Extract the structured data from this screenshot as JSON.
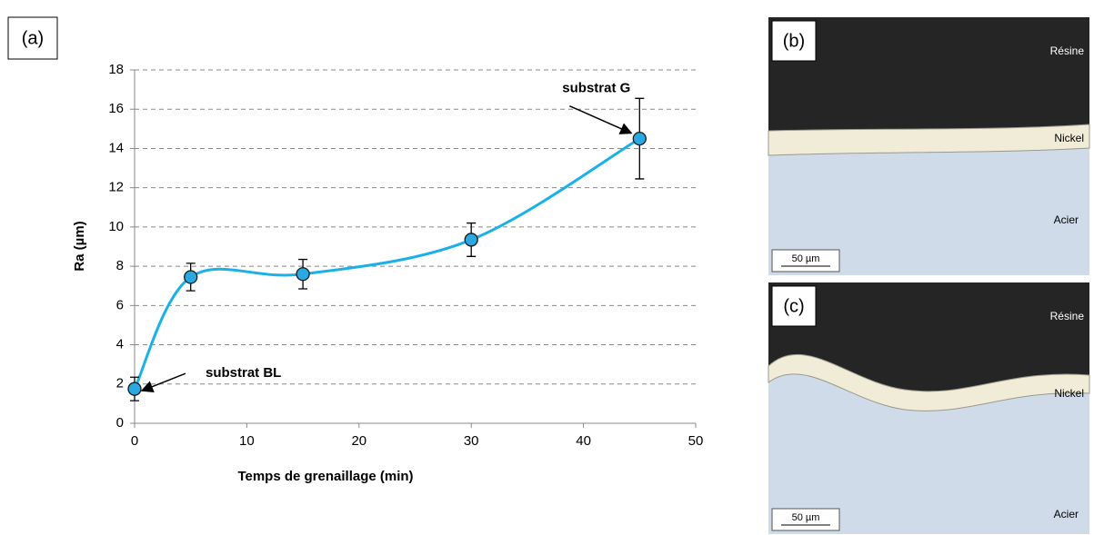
{
  "chart_data": {
    "type": "line",
    "label": "(a)",
    "xlabel": "Temps de grenaillage (min)",
    "ylabel": "Ra (µm)",
    "x": [
      0,
      5,
      15,
      30,
      45
    ],
    "series": [
      {
        "color": "#1ab0e8",
        "values": [
          1.75,
          7.45,
          7.6,
          9.35,
          14.5
        ],
        "errors": [
          0.6,
          0.7,
          0.75,
          0.85,
          2.05
        ]
      }
    ],
    "xlim": [
      0,
      50
    ],
    "xticks": [
      0,
      10,
      20,
      30,
      40,
      50
    ],
    "ylim": [
      0,
      18
    ],
    "yticks": [
      0,
      2,
      4,
      6,
      8,
      10,
      12,
      14,
      16,
      18
    ],
    "grid": true,
    "annotations": [
      {
        "text": "substrat BL",
        "x": 0,
        "y": 1.75
      },
      {
        "text": "substrat G",
        "x": 45,
        "y": 14.5
      }
    ]
  },
  "micrographs": [
    {
      "label": "(b)",
      "top": "Résine",
      "middle": "Nickel",
      "bottom": "Acier",
      "scale": "50 µm"
    },
    {
      "label": "(c)",
      "top": "Résine",
      "middle": "Nickel",
      "bottom": "Acier",
      "scale": "50 µm"
    }
  ]
}
